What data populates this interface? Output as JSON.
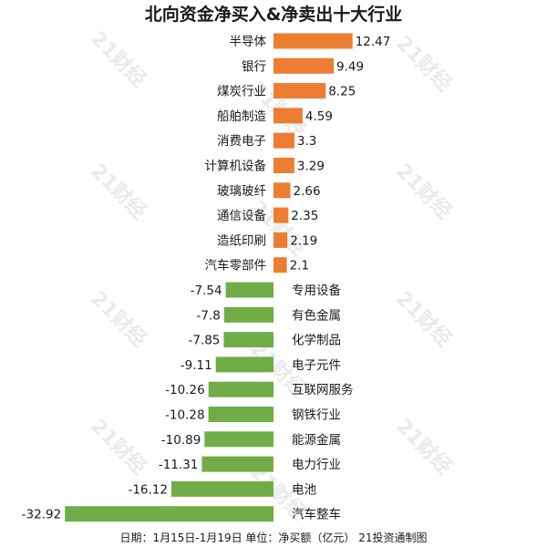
{
  "chart_data": {
    "type": "bar",
    "orientation": "horizontal",
    "title": "北向资金净买入&净卖出十大行业",
    "categories": [
      "半导体",
      "银行",
      "煤炭行业",
      "船舶制造",
      "消费电子",
      "计算机设备",
      "玻璃玻纤",
      "通信设备",
      "造纸印刷",
      "汽车零部件",
      "专用设备",
      "有色金属",
      "化学制品",
      "电子元件",
      "互联网服务",
      "钢铁行业",
      "能源金属",
      "电力行业",
      "电池",
      "汽车整车"
    ],
    "values": [
      12.47,
      9.49,
      8.25,
      4.59,
      3.3,
      3.29,
      2.66,
      2.35,
      2.19,
      2.1,
      -7.54,
      -7.8,
      -7.85,
      -9.11,
      -10.26,
      -10.28,
      -10.89,
      -11.31,
      -16.12,
      -32.92
    ],
    "value_labels": [
      "12.47",
      "9.49",
      "8.25",
      "4.59",
      "3.3",
      "3.29",
      "2.66",
      "2.35",
      "2.19",
      "2.1",
      "-7.54",
      "-7.8",
      "-7.85",
      "-9.11",
      "-10.26",
      "-10.28",
      "-10.89",
      "-11.31",
      "-16.12",
      "-32.92"
    ],
    "colors": {
      "positive": "#ed7d31",
      "negative": "#70ad47"
    },
    "footnote": "日期：1月15日-1月19日 单位：净买额（亿元） 21投资通制图",
    "watermark": "21财经",
    "grid": false,
    "legend": "none"
  }
}
